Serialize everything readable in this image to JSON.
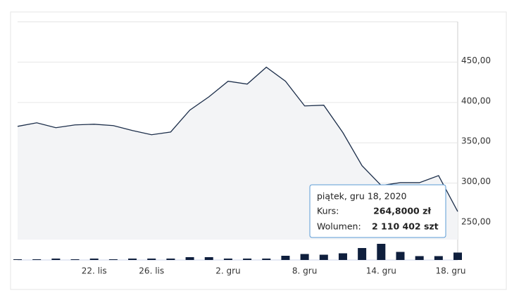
{
  "chart_data": {
    "type": "line",
    "categories": [
      null,
      null,
      null,
      null,
      "22. lis",
      null,
      null,
      "26. lis",
      null,
      null,
      null,
      "2. gru",
      null,
      null,
      null,
      "8. gru",
      null,
      null,
      null,
      "14. gru",
      null,
      null,
      null,
      "18. gru"
    ],
    "series": [
      {
        "color": "#1c2e4a",
        "fill": "#f3f4f6",
        "values": [
          370.4,
          374.8,
          368.7,
          372.2,
          373,
          371.3,
          365.2,
          360,
          363.4,
          390.5,
          407,
          426.3,
          422.8,
          443.7,
          426.3,
          395.7,
          396.6,
          362.6,
          321.6,
          297.1,
          300.6,
          300.6,
          309.3,
          264.8
        ]
      },
      {
        "type": "bar",
        "axis": "y2",
        "color": "#0f1f3d",
        "values": [
          200000,
          200000,
          400000,
          200000,
          400000,
          200000,
          400000,
          400000,
          400000,
          800000,
          800000,
          400000,
          400000,
          400000,
          1200000,
          1700000,
          1500000,
          1900000,
          3400000,
          4600000,
          2300000,
          1100000,
          1100000,
          2110402
        ]
      }
    ],
    "ylim": [
      230,
      500
    ],
    "yticks": [
      {
        "value": 250,
        "label": "250,00"
      },
      {
        "value": 300,
        "label": "300,00"
      },
      {
        "value": 350,
        "label": "350,00"
      },
      {
        "value": 400,
        "label": "400,00"
      },
      {
        "value": 450,
        "label": "450,00"
      }
    ],
    "y2lim": [
      0,
      6000000
    ],
    "grid": true,
    "tooltip": {
      "title": "piątek, gru 18, 2020",
      "rows": [
        {
          "label": "Kurs:",
          "value": "264,8000 zł"
        },
        {
          "label": "Wolumen:",
          "value": "2 110 402 szt"
        }
      ]
    }
  }
}
